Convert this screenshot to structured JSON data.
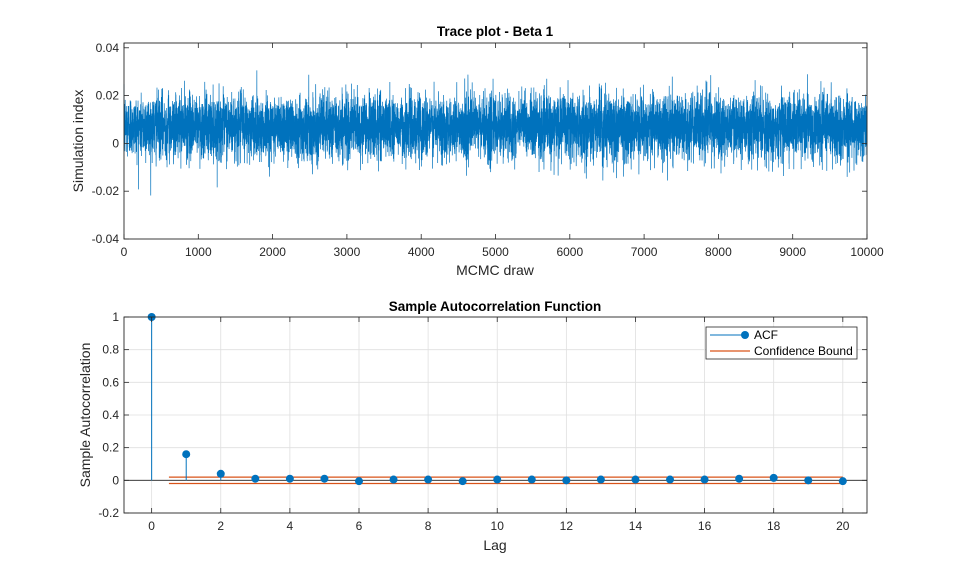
{
  "chart_data": [
    {
      "type": "line",
      "title": "Trace plot - Beta 1",
      "xlabel": "MCMC draw",
      "ylabel": "Simulation index",
      "xlim": [
        0,
        10000
      ],
      "ylim": [
        -0.04,
        0.042
      ],
      "xticks": [
        "0",
        "1000",
        "2000",
        "3000",
        "4000",
        "5000",
        "6000",
        "7000",
        "8000",
        "9000",
        "10000"
      ],
      "xtick_values": [
        0,
        1000,
        2000,
        3000,
        4000,
        5000,
        6000,
        7000,
        8000,
        9000,
        10000
      ],
      "yticks": [
        "-0.04",
        "-0.02",
        "0",
        "0.02",
        "0.04"
      ],
      "ytick_values": [
        -0.04,
        -0.02,
        0,
        0.02,
        0.04
      ],
      "grid": false,
      "n_draws": 10000,
      "series_mean": 0.007,
      "series_std": 0.0065,
      "lag1_autocorrelation": 0.16,
      "color": "#0072BD"
    },
    {
      "type": "stem",
      "title": "Sample Autocorrelation Function",
      "xlabel": "Lag",
      "ylabel": "Sample Autocorrelation",
      "xlim": [
        -0.8,
        20.7
      ],
      "ylim": [
        -0.2,
        1
      ],
      "xticks": [
        "0",
        "2",
        "4",
        "6",
        "8",
        "10",
        "12",
        "14",
        "16",
        "18",
        "20"
      ],
      "xtick_values": [
        0,
        2,
        4,
        6,
        8,
        10,
        12,
        14,
        16,
        18,
        20
      ],
      "yticks": [
        "-0.2",
        "0",
        "0.2",
        "0.4",
        "0.6",
        "0.8",
        "1"
      ],
      "ytick_values": [
        -0.2,
        0,
        0.2,
        0.4,
        0.6,
        0.8,
        1
      ],
      "grid": true,
      "lags": [
        0,
        1,
        2,
        3,
        4,
        5,
        6,
        7,
        8,
        9,
        10,
        11,
        12,
        13,
        14,
        15,
        16,
        17,
        18,
        19,
        20
      ],
      "acf": [
        1,
        0.16,
        0.04,
        0.01,
        0.01,
        0.01,
        -0.005,
        0.005,
        0.005,
        -0.005,
        0.005,
        0.005,
        0,
        0.005,
        0.005,
        0.005,
        0.005,
        0.01,
        0.015,
        0,
        -0.005
      ],
      "confidence_bound": [
        -0.0196,
        0.0196
      ],
      "confidence_lag_range": [
        0.5,
        20
      ],
      "legend": {
        "placement": "top-right",
        "entries": [
          "ACF",
          "Confidence Bound"
        ]
      },
      "colors": {
        "acf": "#0072BD",
        "bound": "#D95319"
      }
    }
  ]
}
